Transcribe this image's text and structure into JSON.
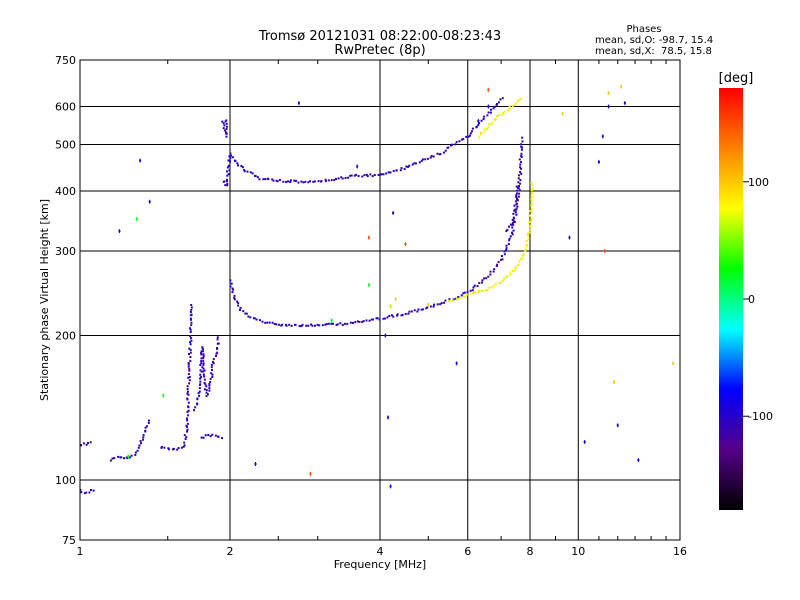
{
  "chart_data": {
    "type": "scatter",
    "title": "Tromsø 20121031 08:22:00-08:23:43",
    "subtitle": "RwPretec (8p)",
    "xlabel": "Frequency [MHz]",
    "ylabel": "Stationary phase Virtual Height [km]",
    "x_scale": "log",
    "y_scale": "log",
    "xlim": [
      1,
      16
    ],
    "ylim": [
      75,
      750
    ],
    "x_ticks": [
      1,
      2,
      4,
      6,
      8,
      10,
      16
    ],
    "x_tick_labels": [
      "1",
      "2",
      "4",
      "6",
      "8",
      "10",
      "16"
    ],
    "y_ticks": [
      75,
      100,
      200,
      300,
      400,
      500,
      600,
      750
    ],
    "y_tick_labels": [
      "75",
      "100",
      "200",
      "300",
      "400",
      "500",
      "600",
      "750"
    ],
    "grid": true,
    "phases_box": {
      "heading": "Phases",
      "line_o": "mean, sd,O: -98.7, 15.4",
      "line_x": "mean, sd,X:  78.5, 15.8"
    },
    "colorbar": {
      "label": "[deg]",
      "range": [
        -180,
        180
      ],
      "ticks": [
        100,
        0,
        -100
      ],
      "tick_labels": [
        "100",
        "0",
        "-100"
      ],
      "colors": [
        "#ff0000",
        "#ff8000",
        "#ffff00",
        "#00ff00",
        "#00ffff",
        "#0000ff",
        "#550088",
        "#000000"
      ]
    },
    "series": [
      {
        "mode": "O",
        "phase": -105,
        "traces": [
          [
            [
              2.0,
              260
            ],
            [
              2.04,
              240
            ],
            [
              2.1,
              226
            ],
            [
              2.2,
              218
            ],
            [
              2.35,
              213
            ],
            [
              2.5,
              211
            ],
            [
              2.75,
              210
            ],
            [
              3.0,
              210
            ],
            [
              3.3,
              211
            ],
            [
              3.6,
              213
            ],
            [
              4.0,
              217
            ],
            [
              4.4,
              221
            ],
            [
              4.8,
              226
            ],
            [
              5.2,
              232
            ],
            [
              5.6,
              238
            ],
            [
              6.0,
              246
            ],
            [
              6.4,
              258
            ],
            [
              6.8,
              275
            ],
            [
              7.1,
              295
            ],
            [
              7.35,
              325
            ],
            [
              7.5,
              360
            ],
            [
              7.6,
              400
            ],
            [
              7.65,
              440
            ],
            [
              7.68,
              480
            ],
            [
              7.7,
              520
            ]
          ],
          [
            [
              1.94,
              420
            ],
            [
              1.97,
              410
            ],
            [
              2.0,
              480
            ],
            [
              2.05,
              460
            ],
            [
              2.15,
              440
            ],
            [
              2.3,
              425
            ],
            [
              2.5,
              420
            ],
            [
              2.75,
              418
            ],
            [
              3.0,
              418
            ],
            [
              3.3,
              425
            ],
            [
              3.6,
              430
            ],
            [
              4.0,
              432
            ],
            [
              4.3,
              440
            ],
            [
              4.6,
              452
            ],
            [
              5.0,
              468
            ],
            [
              5.3,
              480
            ],
            [
              5.6,
              500
            ],
            [
              6.0,
              520
            ],
            [
              6.3,
              550
            ],
            [
              6.6,
              580
            ],
            [
              6.9,
              610
            ],
            [
              7.1,
              630
            ]
          ],
          [
            [
              1.93,
              560
            ],
            [
              1.95,
              540
            ],
            [
              1.96,
              520
            ],
            [
              1.97,
              570
            ]
          ],
          [
            [
              1.0,
              118
            ],
            [
              1.03,
              119
            ],
            [
              1.06,
              121
            ]
          ],
          [
            [
              1.15,
              110
            ],
            [
              1.2,
              112
            ],
            [
              1.25,
              111
            ],
            [
              1.3,
              114
            ],
            [
              1.35,
              126
            ],
            [
              1.38,
              134
            ]
          ],
          [
            [
              1.45,
              117
            ],
            [
              1.5,
              116
            ],
            [
              1.58,
              116
            ],
            [
              1.62,
              117
            ],
            [
              1.64,
              130
            ],
            [
              1.65,
              150
            ],
            [
              1.66,
              180
            ],
            [
              1.67,
              210
            ],
            [
              1.68,
              235
            ]
          ],
          [
            [
              1.7,
              140
            ],
            [
              1.73,
              150
            ],
            [
              1.75,
              170
            ],
            [
              1.76,
              190
            ],
            [
              1.78,
              160
            ],
            [
              1.8,
              150
            ],
            [
              1.83,
              160
            ],
            [
              1.85,
              175
            ],
            [
              1.88,
              185
            ],
            [
              1.9,
              200
            ]
          ],
          [
            [
              1.75,
              122
            ],
            [
              1.8,
              124
            ],
            [
              1.85,
              124
            ],
            [
              1.9,
              123
            ],
            [
              1.95,
              122
            ]
          ],
          [
            [
              1.0,
              95
            ],
            [
              1.03,
              94
            ],
            [
              1.07,
              96
            ]
          ],
          [
            [
              7.2,
              330
            ],
            [
              7.4,
              345
            ],
            [
              7.5,
              380
            ],
            [
              7.55,
              420
            ]
          ]
        ]
      },
      {
        "mode": "X",
        "phase": 80,
        "traces": [
          [
            [
              5.5,
              236
            ],
            [
              5.8,
              240
            ],
            [
              6.2,
              245
            ],
            [
              6.6,
              250
            ],
            [
              7.0,
              258
            ],
            [
              7.4,
              272
            ],
            [
              7.7,
              290
            ],
            [
              7.9,
              310
            ],
            [
              8.0,
              340
            ],
            [
              8.05,
              380
            ],
            [
              8.08,
              420
            ]
          ],
          [
            [
              6.3,
              520
            ],
            [
              6.6,
              545
            ],
            [
              6.9,
              570
            ],
            [
              7.2,
              590
            ],
            [
              7.5,
              610
            ],
            [
              7.7,
              630
            ]
          ]
        ]
      },
      {
        "mode": "scatter",
        "phase": 100,
        "points": [
          [
            4.3,
            238
          ],
          [
            4.2,
            230
          ],
          [
            5.0,
            232
          ],
          [
            9.3,
            580
          ],
          [
            11.5,
            640
          ],
          [
            12.2,
            660
          ],
          [
            11.8,
            160
          ],
          [
            15.5,
            175
          ]
        ]
      },
      {
        "mode": "scatter",
        "phase": 20,
        "points": [
          [
            1.3,
            350
          ],
          [
            1.25,
            112
          ],
          [
            3.2,
            215
          ],
          [
            3.8,
            255
          ],
          [
            1.47,
            150
          ]
        ]
      },
      {
        "mode": "scatter",
        "phase": -100,
        "points": [
          [
            1.32,
            463
          ],
          [
            1.38,
            380
          ],
          [
            1.2,
            330
          ],
          [
            2.75,
            610
          ],
          [
            3.6,
            450
          ],
          [
            4.25,
            360
          ],
          [
            6.6,
            600
          ],
          [
            9.6,
            320
          ],
          [
            10.3,
            120
          ],
          [
            11.2,
            520
          ],
          [
            11.5,
            600
          ],
          [
            12.0,
            130
          ],
          [
            13.2,
            110
          ],
          [
            11.0,
            460
          ],
          [
            12.4,
            610
          ],
          [
            2.25,
            108
          ],
          [
            4.1,
            200
          ],
          [
            4.2,
            97
          ],
          [
            4.15,
            135
          ],
          [
            5.7,
            175
          ],
          [
            6.3,
            560
          ]
        ]
      },
      {
        "mode": "scatter",
        "phase": 150,
        "points": [
          [
            11.3,
            300
          ],
          [
            4.5,
            310
          ],
          [
            6.6,
            650
          ],
          [
            3.8,
            320
          ],
          [
            2.9,
            103
          ]
        ]
      }
    ]
  }
}
